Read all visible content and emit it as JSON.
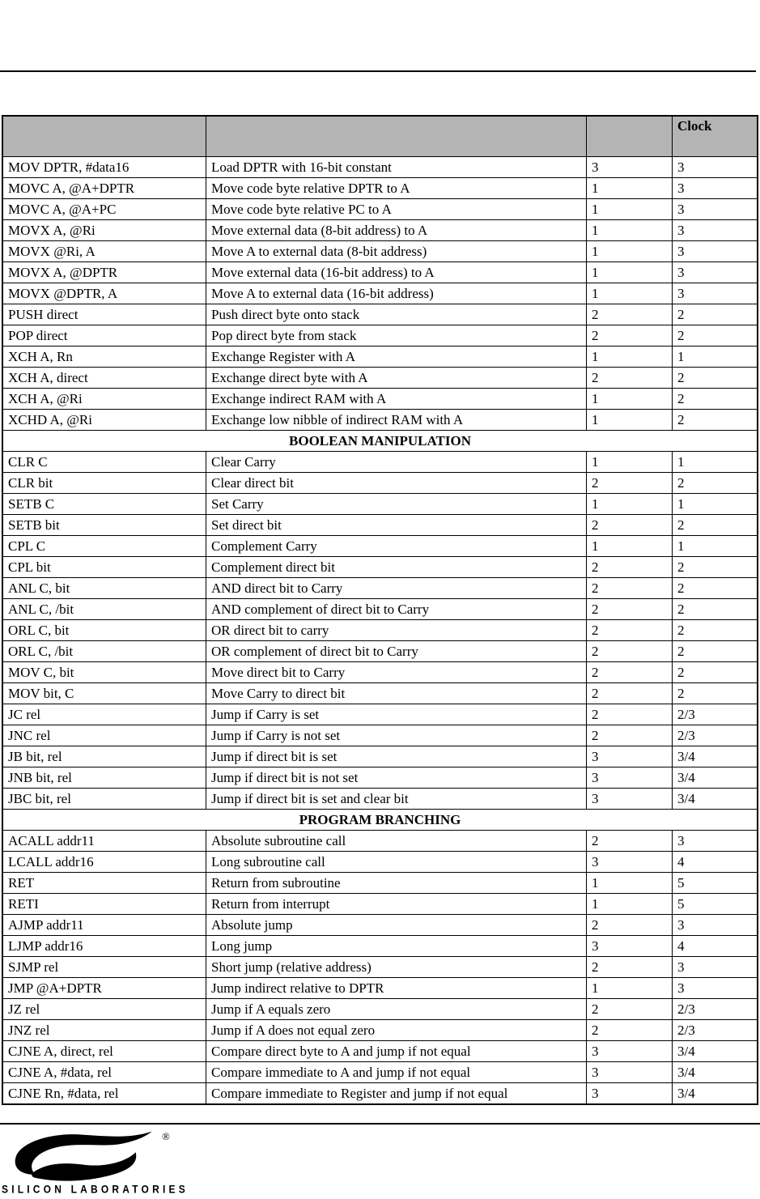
{
  "colors": {
    "header_gray": "#b4b4b4",
    "border": "#000000",
    "text": "#000000",
    "background": "#ffffff"
  },
  "table": {
    "columns": [
      "",
      "",
      "",
      "Clock"
    ],
    "rows": [
      {
        "type": "data",
        "mnemonic": "MOV DPTR, #data16",
        "description": "Load DPTR with 16-bit constant",
        "bytes": "3",
        "clocks": "3"
      },
      {
        "type": "data",
        "mnemonic": "MOVC A, @A+DPTR",
        "description": "Move code byte relative DPTR to A",
        "bytes": "1",
        "clocks": "3"
      },
      {
        "type": "data",
        "mnemonic": "MOVC A, @A+PC",
        "description": "Move code byte relative PC to A",
        "bytes": "1",
        "clocks": "3"
      },
      {
        "type": "data",
        "mnemonic": "MOVX A, @Ri",
        "description": "Move external data (8-bit address) to A",
        "bytes": "1",
        "clocks": "3"
      },
      {
        "type": "data",
        "mnemonic": "MOVX @Ri, A",
        "description": "Move A to external data (8-bit address)",
        "bytes": "1",
        "clocks": "3"
      },
      {
        "type": "data",
        "mnemonic": "MOVX A, @DPTR",
        "description": "Move external data (16-bit address) to A",
        "bytes": "1",
        "clocks": "3"
      },
      {
        "type": "data",
        "mnemonic": "MOVX @DPTR, A",
        "description": "Move A to external data (16-bit address)",
        "bytes": "1",
        "clocks": "3"
      },
      {
        "type": "data",
        "mnemonic": "PUSH direct",
        "description": "Push direct byte onto stack",
        "bytes": "2",
        "clocks": "2"
      },
      {
        "type": "data",
        "mnemonic": "POP direct",
        "description": "Pop direct byte from stack",
        "bytes": "2",
        "clocks": "2"
      },
      {
        "type": "data",
        "mnemonic": "XCH A, Rn",
        "description": "Exchange Register with A",
        "bytes": "1",
        "clocks": "1"
      },
      {
        "type": "data",
        "mnemonic": "XCH A, direct",
        "description": "Exchange direct byte with A",
        "bytes": "2",
        "clocks": "2"
      },
      {
        "type": "data",
        "mnemonic": "XCH A, @Ri",
        "description": "Exchange indirect RAM with A",
        "bytes": "1",
        "clocks": "2"
      },
      {
        "type": "data",
        "mnemonic": "XCHD A, @Ri",
        "description": "Exchange low nibble of indirect RAM with A",
        "bytes": "1",
        "clocks": "2"
      },
      {
        "type": "section",
        "label": "BOOLEAN MANIPULATION"
      },
      {
        "type": "data",
        "mnemonic": "CLR C",
        "description": "Clear Carry",
        "bytes": "1",
        "clocks": "1"
      },
      {
        "type": "data",
        "mnemonic": "CLR bit",
        "description": "Clear direct bit",
        "bytes": "2",
        "clocks": "2"
      },
      {
        "type": "data",
        "mnemonic": "SETB C",
        "description": "Set Carry",
        "bytes": "1",
        "clocks": "1"
      },
      {
        "type": "data",
        "mnemonic": "SETB bit",
        "description": "Set direct bit",
        "bytes": "2",
        "clocks": "2"
      },
      {
        "type": "data",
        "mnemonic": "CPL C",
        "description": "Complement Carry",
        "bytes": "1",
        "clocks": "1"
      },
      {
        "type": "data",
        "mnemonic": "CPL bit",
        "description": "Complement direct bit",
        "bytes": "2",
        "clocks": "2"
      },
      {
        "type": "data",
        "mnemonic": "ANL C, bit",
        "description": "AND direct bit to Carry",
        "bytes": "2",
        "clocks": "2"
      },
      {
        "type": "data",
        "mnemonic": "ANL C, /bit",
        "description": "AND complement of direct bit to Carry",
        "bytes": "2",
        "clocks": "2"
      },
      {
        "type": "data",
        "mnemonic": "ORL C, bit",
        "description": "OR direct bit to carry",
        "bytes": "2",
        "clocks": "2"
      },
      {
        "type": "data",
        "mnemonic": "ORL C, /bit",
        "description": "OR complement of direct bit to Carry",
        "bytes": "2",
        "clocks": "2"
      },
      {
        "type": "data",
        "mnemonic": "MOV C, bit",
        "description": "Move direct bit to Carry",
        "bytes": "2",
        "clocks": "2"
      },
      {
        "type": "data",
        "mnemonic": "MOV bit, C",
        "description": "Move Carry to direct bit",
        "bytes": "2",
        "clocks": "2"
      },
      {
        "type": "data",
        "mnemonic": "JC rel",
        "description": "Jump if Carry is set",
        "bytes": "2",
        "clocks": "2/3"
      },
      {
        "type": "data",
        "mnemonic": "JNC rel",
        "description": "Jump if Carry is not set",
        "bytes": "2",
        "clocks": "2/3"
      },
      {
        "type": "data",
        "mnemonic": "JB bit, rel",
        "description": "Jump if direct bit is set",
        "bytes": "3",
        "clocks": "3/4"
      },
      {
        "type": "data",
        "mnemonic": "JNB bit, rel",
        "description": "Jump if direct bit is not set",
        "bytes": "3",
        "clocks": "3/4"
      },
      {
        "type": "data",
        "mnemonic": "JBC bit, rel",
        "description": "Jump if direct bit is set and clear bit",
        "bytes": "3",
        "clocks": "3/4"
      },
      {
        "type": "section",
        "label": "PROGRAM BRANCHING"
      },
      {
        "type": "data",
        "mnemonic": "ACALL addr11",
        "description": "Absolute subroutine call",
        "bytes": "2",
        "clocks": "3"
      },
      {
        "type": "data",
        "mnemonic": "LCALL addr16",
        "description": "Long subroutine call",
        "bytes": "3",
        "clocks": "4"
      },
      {
        "type": "data",
        "mnemonic": "RET",
        "description": "Return from subroutine",
        "bytes": "1",
        "clocks": "5"
      },
      {
        "type": "data",
        "mnemonic": "RETI",
        "description": "Return from interrupt",
        "bytes": "1",
        "clocks": "5"
      },
      {
        "type": "data",
        "mnemonic": "AJMP addr11",
        "description": "Absolute jump",
        "bytes": "2",
        "clocks": "3"
      },
      {
        "type": "data",
        "mnemonic": "LJMP addr16",
        "description": "Long jump",
        "bytes": "3",
        "clocks": "4"
      },
      {
        "type": "data",
        "mnemonic": "SJMP rel",
        "description": "Short jump (relative address)",
        "bytes": "2",
        "clocks": "3"
      },
      {
        "type": "data",
        "mnemonic": "JMP @A+DPTR",
        "description": "Jump indirect relative to DPTR",
        "bytes": "1",
        "clocks": "3"
      },
      {
        "type": "data",
        "mnemonic": "JZ rel",
        "description": "Jump if A equals zero",
        "bytes": "2",
        "clocks": "2/3"
      },
      {
        "type": "data",
        "mnemonic": "JNZ rel",
        "description": "Jump if A does not equal zero",
        "bytes": "2",
        "clocks": "2/3"
      },
      {
        "type": "data",
        "mnemonic": "CJNE A, direct, rel",
        "description": "Compare direct byte to A and jump if not equal",
        "bytes": "3",
        "clocks": "3/4"
      },
      {
        "type": "data",
        "mnemonic": "CJNE A, #data, rel",
        "description": "Compare immediate to A and jump if not equal",
        "bytes": "3",
        "clocks": "3/4"
      },
      {
        "type": "data",
        "mnemonic": "CJNE Rn, #data, rel",
        "description": "Compare immediate to Register and jump if not equal",
        "bytes": "3",
        "clocks": "3/4"
      }
    ]
  },
  "footer": {
    "brand_wordmark": "SILICON LABORATORIES",
    "registered_mark": "®"
  }
}
